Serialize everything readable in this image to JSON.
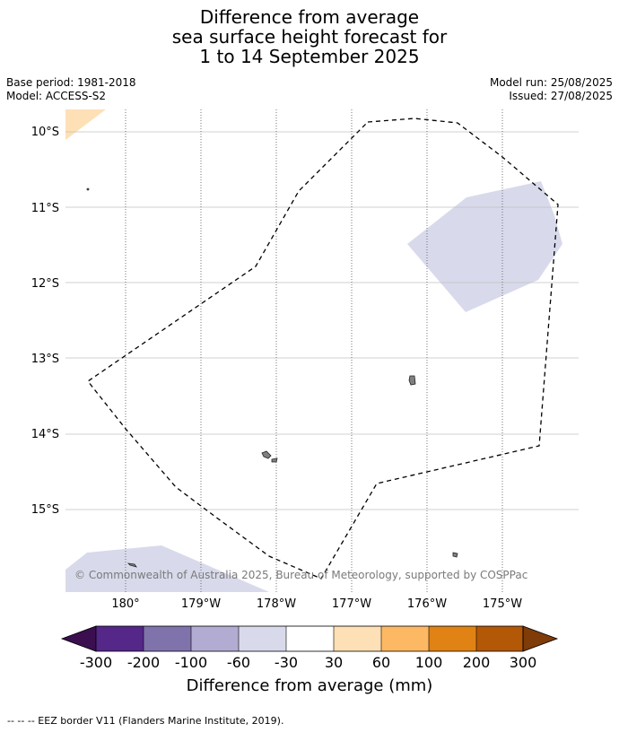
{
  "title": {
    "line1": "Difference from average",
    "line2": "sea surface height forecast for",
    "line3": "1 to 14 September 2025"
  },
  "meta": {
    "base_period": "Base period: 1981-2018",
    "model": "Model: ACCESS-S2",
    "model_run": "Model run: 25/08/2025",
    "issued": "Issued: 27/08/2025"
  },
  "map": {
    "lat_labels": [
      "10°S",
      "11°S",
      "12°S",
      "13°S",
      "14°S",
      "15°S"
    ],
    "lon_labels": [
      "180°",
      "179°W",
      "178°W",
      "177°W",
      "176°W",
      "175°W"
    ],
    "copyright": "© Commonwealth of Australia 2025, Bureau of Meteorology, supported by COSPPac",
    "ocean_color": "#ffffff",
    "land_color": "#808080",
    "eez_style": "dashed"
  },
  "colorbar": {
    "label": "Difference from average (mm)",
    "ticks": [
      "-300",
      "-200",
      "-100",
      "-60",
      "-30",
      "30",
      "60",
      "100",
      "200",
      "300"
    ],
    "low_extend_color": "#3b0f4f",
    "high_extend_color": "#7f3b08",
    "colors": [
      "#542788",
      "#8073ac",
      "#b2abd2",
      "#d8daeb",
      "#ffffff",
      "#fee0b6",
      "#fdb863",
      "#e08214",
      "#b35806"
    ]
  },
  "footer": {
    "eez_legend": "--  --  -- EEZ border V11 (Flanders Marine Institute, 2019)."
  }
}
